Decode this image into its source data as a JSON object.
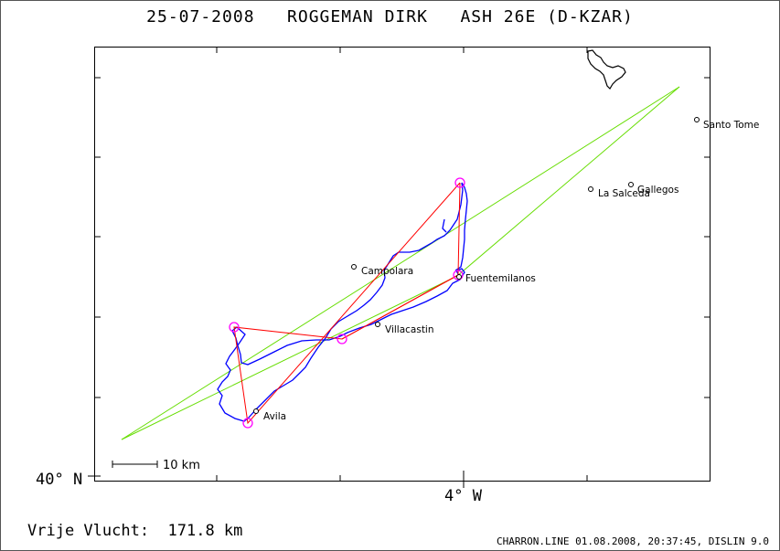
{
  "title": {
    "date": "25-07-2008",
    "pilot": "ROGGEMAN DIRK",
    "glider": "ASH 26E (D-KZAR)"
  },
  "axes": {
    "lat_label": "40° N",
    "lon_label": "4° W"
  },
  "scale": {
    "label": "10 km"
  },
  "places": [
    {
      "name": "Santo Tome"
    },
    {
      "name": "Gallegos"
    },
    {
      "name": "La Salceda"
    },
    {
      "name": "Campolara"
    },
    {
      "name": "Fuentemilanos"
    },
    {
      "name": "Villacastin"
    },
    {
      "name": "Avila"
    }
  ],
  "footer": {
    "distance_text": "Vrije Vlucht:  171.8 km",
    "credits": "CHARRON.LINE 01.08.2008, 20:37:45, DISLIN 9.0"
  },
  "colors": {
    "track": "#0000ff",
    "task": "#ff0000",
    "turnpoint": "#ff00ff",
    "sector": "#66dd00",
    "frame": "#000000"
  }
}
